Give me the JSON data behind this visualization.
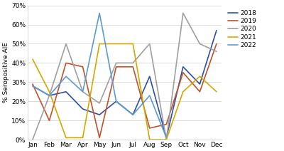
{
  "months": [
    "Jan",
    "Feb",
    "Mar",
    "Apr",
    "May",
    "Jun",
    "Jul",
    "Aug",
    "Sep",
    "Oct",
    "Nov",
    "Dec"
  ],
  "series": {
    "2018": [
      28,
      23,
      25,
      16,
      13,
      20,
      13,
      33,
      1,
      38,
      29,
      57
    ],
    "2019": [
      29,
      10,
      40,
      38,
      1,
      38,
      38,
      6,
      8,
      35,
      25,
      50
    ],
    "2020": [
      0,
      23,
      50,
      25,
      19,
      40,
      40,
      50,
      0,
      66,
      50,
      46
    ],
    "2021": [
      42,
      25,
      1,
      1,
      50,
      50,
      50,
      0,
      0,
      25,
      33,
      25
    ],
    "2022": [
      28,
      23,
      33,
      25,
      66,
      20,
      13,
      23,
      1,
      null,
      null,
      null
    ]
  },
  "colors": {
    "2018": "#2e4fa3",
    "2019": "#c0522a",
    "2020": "#a0a0a0",
    "2021": "#d4a800",
    "2022": "#5b9bd5"
  },
  "ylim": [
    0,
    70
  ],
  "yticks": [
    0,
    10,
    20,
    30,
    40,
    50,
    60,
    70
  ],
  "ylabel": "% Seropositive AIE",
  "background_color": "#ffffff",
  "legend_years": [
    "2018",
    "2019",
    "2020",
    "2021",
    "2022"
  ]
}
